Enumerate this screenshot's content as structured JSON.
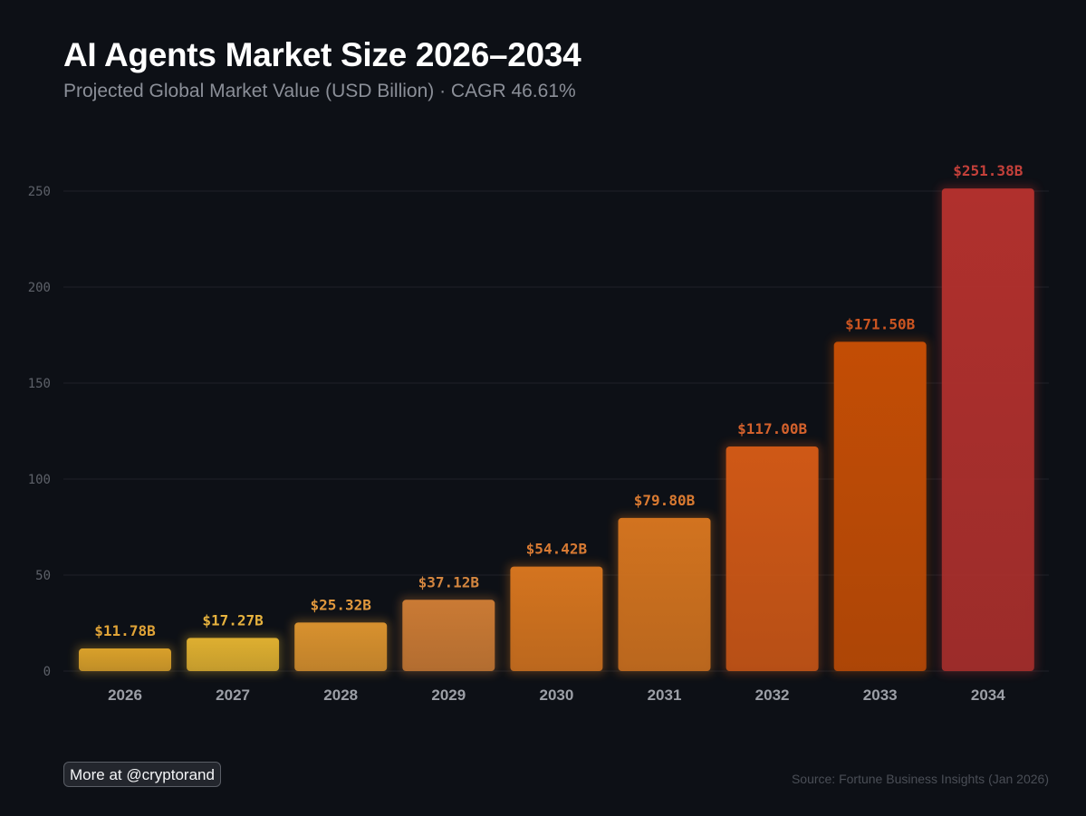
{
  "chart_data": {
    "type": "bar",
    "title": "AI Agents Market Size 2026–2034",
    "subtitle": "Projected Global Market Value (USD Billion) · CAGR 46.61%",
    "xlabel": "",
    "ylabel": "",
    "categories": [
      "2026",
      "2027",
      "2028",
      "2029",
      "2030",
      "2031",
      "2032",
      "2033",
      "2034"
    ],
    "values": [
      11.78,
      17.27,
      25.32,
      37.12,
      54.42,
      79.8,
      117.0,
      171.5,
      251.38
    ],
    "value_labels": [
      "$11.78B",
      "$17.27B",
      "$25.32B",
      "$37.12B",
      "$54.42B",
      "$79.80B",
      "$117.00B",
      "$171.50B",
      "$251.38B"
    ],
    "yticks": [
      0,
      50,
      100,
      150,
      200,
      250
    ],
    "ylim": [
      0,
      260
    ],
    "grid": true,
    "legend": "none",
    "bar_colors": [
      "#d9a02a",
      "#deaf30",
      "#d8912e",
      "#ca7a34",
      "#d4741f",
      "#d2731f",
      "#cf5816",
      "#c34d05",
      "#b0302d"
    ],
    "label_colors": [
      "#e1a437",
      "#e6b23e",
      "#e1983d",
      "#d4863f",
      "#d87a33",
      "#d97a31",
      "#d3612c",
      "#cc5521",
      "#c4403a"
    ]
  },
  "footer": {
    "cta": "More at @cryptorand",
    "source": "Source: Fortune Business Insights (Jan 2026)"
  },
  "colors": {
    "background": "#0d1016",
    "grid": "#1e2128",
    "tick_label": "#5d6169",
    "category_label": "#9c9fa6"
  }
}
